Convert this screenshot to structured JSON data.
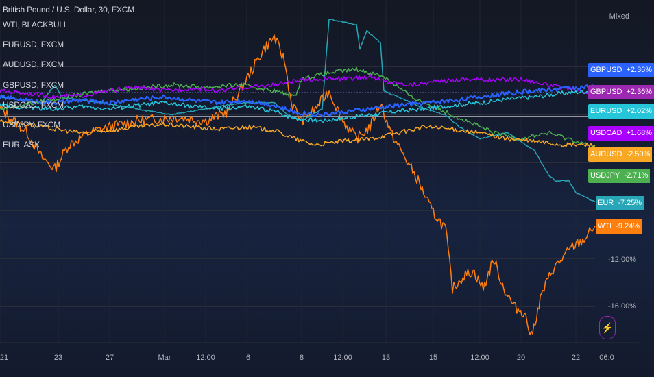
{
  "header": {
    "title": "British Pound / U.S. Dollar, 30, FXCM",
    "scale_mode": "Mixed"
  },
  "legend": [
    "WTI, BLACKBULL",
    "EURUSD, FXCM",
    "AUDUSD, FXCM",
    "GBPUSD, FXCM",
    "USDCAD, FXCM",
    "USDJPY, FXCM",
    "EUR, ASX"
  ],
  "price_labels": [
    {
      "symbol": "GBPUSD",
      "change": "+2.36%",
      "color": "#2962ff"
    },
    {
      "symbol": "GBPUSD",
      "change": "+2.36%",
      "color": "#9c27b0"
    },
    {
      "symbol": "EURUSD",
      "change": "+2.02%",
      "color": "#26c6da"
    },
    {
      "symbol": "USDCAD",
      "change": "+1.68%",
      "color": "#aa00ff"
    },
    {
      "symbol": "AUDUSD",
      "change": "-2.50%",
      "color": "#f9a825"
    },
    {
      "symbol": "USDJPY",
      "change": "-2.71%",
      "color": "#4caf50"
    },
    {
      "symbol": "EUR",
      "change": "-7.25%",
      "color": "#26a6b6"
    },
    {
      "symbol": "WTI",
      "change": "-9.24%",
      "color": "#ff7f0e"
    }
  ],
  "chart_data": {
    "type": "line",
    "ylabel_ticks": [
      "-12.00%",
      "-16.00%"
    ],
    "x_ticks": [
      "21",
      "23",
      "27",
      "Mar",
      "12:00",
      "6",
      "8",
      "12:00",
      "13",
      "15",
      "12:00",
      "20",
      "22",
      "06:0"
    ],
    "series": [
      {
        "name": "WTI",
        "color": "#ff7f0e",
        "points": [
          [
            0,
            0.5
          ],
          [
            20,
            -0.5
          ],
          [
            40,
            -1.5
          ],
          [
            60,
            -3.5
          ],
          [
            80,
            -4.5
          ],
          [
            100,
            -2.5
          ],
          [
            130,
            -1.5
          ],
          [
            160,
            -1.0
          ],
          [
            200,
            -0.5
          ],
          [
            260,
            -0.2
          ],
          [
            300,
            -0.5
          ],
          [
            330,
            0.2
          ],
          [
            350,
            2.0
          ],
          [
            370,
            4.0
          ],
          [
            385,
            5.5
          ],
          [
            400,
            6.5
          ],
          [
            415,
            4.5
          ],
          [
            425,
            1.0
          ],
          [
            440,
            -0.5
          ],
          [
            460,
            0.5
          ],
          [
            480,
            2.0
          ],
          [
            500,
            -0.5
          ],
          [
            520,
            -2.0
          ],
          [
            540,
            -1.0
          ],
          [
            555,
            1.0
          ],
          [
            570,
            -1.5
          ],
          [
            590,
            -3.5
          ],
          [
            610,
            -5.5
          ],
          [
            630,
            -8.0
          ],
          [
            650,
            -9.5
          ],
          [
            660,
            -14.5
          ],
          [
            675,
            -13.5
          ],
          [
            690,
            -13.0
          ],
          [
            705,
            -14.5
          ],
          [
            720,
            -12.0
          ],
          [
            735,
            -14.5
          ],
          [
            750,
            -16.0
          ],
          [
            765,
            -16.5
          ],
          [
            775,
            -18.5
          ],
          [
            790,
            -15.0
          ],
          [
            805,
            -13.0
          ],
          [
            820,
            -12.0
          ],
          [
            835,
            -11.0
          ],
          [
            850,
            -10.5
          ],
          [
            868,
            -9.24
          ]
        ]
      },
      {
        "name": "EUR",
        "color": "#26a6b6",
        "points": [
          [
            0,
            1.5
          ],
          [
            60,
            1.0
          ],
          [
            80,
            2.5
          ],
          [
            90,
            1.5
          ],
          [
            150,
            1.0
          ],
          [
            200,
            0.5
          ],
          [
            250,
            0.0
          ],
          [
            300,
            0.5
          ],
          [
            350,
            1.0
          ],
          [
            400,
            1.0
          ],
          [
            420,
            0.0
          ],
          [
            440,
            -0.5
          ],
          [
            470,
            0.5
          ],
          [
            480,
            8.0
          ],
          [
            520,
            7.5
          ],
          [
            525,
            5.5
          ],
          [
            535,
            7.0
          ],
          [
            555,
            6.0
          ],
          [
            560,
            2.0
          ],
          [
            600,
            1.0
          ],
          [
            620,
            0.5
          ],
          [
            650,
            0.0
          ],
          [
            670,
            -1.0
          ],
          [
            700,
            -2.0
          ],
          [
            740,
            -1.5
          ],
          [
            780,
            -3.0
          ],
          [
            800,
            -5.0
          ],
          [
            810,
            -5.5
          ],
          [
            830,
            -5.5
          ],
          [
            840,
            -6.5
          ],
          [
            868,
            -7.25
          ]
        ]
      },
      {
        "name": "USDJPY",
        "color": "#4caf50",
        "points": [
          [
            0,
            0.5
          ],
          [
            50,
            1.0
          ],
          [
            100,
            1.5
          ],
          [
            150,
            2.0
          ],
          [
            200,
            2.2
          ],
          [
            250,
            2.5
          ],
          [
            300,
            2.3
          ],
          [
            350,
            2.5
          ],
          [
            400,
            2.0
          ],
          [
            430,
            1.5
          ],
          [
            440,
            3.0
          ],
          [
            480,
            3.5
          ],
          [
            520,
            3.8
          ],
          [
            560,
            3.2
          ],
          [
            600,
            1.5
          ],
          [
            640,
            0.5
          ],
          [
            680,
            -0.5
          ],
          [
            720,
            -1.5
          ],
          [
            760,
            -2.0
          ],
          [
            800,
            -1.5
          ],
          [
            830,
            -2.0
          ],
          [
            868,
            -2.71
          ]
        ]
      },
      {
        "name": "AUDUSD",
        "color": "#f9a825",
        "points": [
          [
            0,
            -0.5
          ],
          [
            40,
            -0.8
          ],
          [
            80,
            -1.2
          ],
          [
            120,
            -1.5
          ],
          [
            160,
            -1.3
          ],
          [
            200,
            -1.0
          ],
          [
            240,
            -0.8
          ],
          [
            280,
            -1.0
          ],
          [
            320,
            -1.2
          ],
          [
            360,
            -1.0
          ],
          [
            400,
            -1.3
          ],
          [
            430,
            -2.0
          ],
          [
            460,
            -2.5
          ],
          [
            500,
            -2.2
          ],
          [
            540,
            -2.0
          ],
          [
            580,
            -1.5
          ],
          [
            620,
            -1.0
          ],
          [
            660,
            -1.2
          ],
          [
            700,
            -1.5
          ],
          [
            740,
            -2.0
          ],
          [
            780,
            -2.2
          ],
          [
            820,
            -2.5
          ],
          [
            868,
            -2.5
          ]
        ]
      },
      {
        "name": "USDCAD",
        "color": "#aa00ff",
        "points": [
          [
            0,
            2.0
          ],
          [
            40,
            1.8
          ],
          [
            80,
            1.5
          ],
          [
            120,
            1.6
          ],
          [
            160,
            2.0
          ],
          [
            200,
            2.3
          ],
          [
            240,
            2.0
          ],
          [
            280,
            2.2
          ],
          [
            320,
            2.0
          ],
          [
            360,
            2.3
          ],
          [
            400,
            2.5
          ],
          [
            430,
            2.8
          ],
          [
            470,
            3.0
          ],
          [
            510,
            3.0
          ],
          [
            540,
            3.2
          ],
          [
            560,
            2.8
          ],
          [
            600,
            2.5
          ],
          [
            640,
            2.8
          ],
          [
            680,
            3.0
          ],
          [
            720,
            2.9
          ],
          [
            760,
            3.0
          ],
          [
            800,
            2.5
          ],
          [
            840,
            2.0
          ],
          [
            868,
            1.68
          ]
        ]
      },
      {
        "name": "GBPUSD",
        "color": "#2962ff",
        "points": [
          [
            0,
            1.5
          ],
          [
            40,
            1.2
          ],
          [
            80,
            1.0
          ],
          [
            120,
            1.2
          ],
          [
            160,
            1.0
          ],
          [
            200,
            1.3
          ],
          [
            240,
            1.5
          ],
          [
            280,
            1.2
          ],
          [
            320,
            1.0
          ],
          [
            360,
            1.2
          ],
          [
            400,
            0.8
          ],
          [
            430,
            0.2
          ],
          [
            470,
            0.0
          ],
          [
            510,
            0.3
          ],
          [
            540,
            0.5
          ],
          [
            580,
            0.8
          ],
          [
            620,
            1.0
          ],
          [
            660,
            1.2
          ],
          [
            700,
            1.5
          ],
          [
            740,
            1.8
          ],
          [
            780,
            2.0
          ],
          [
            820,
            2.2
          ],
          [
            868,
            2.36
          ]
        ]
      },
      {
        "name": "EURUSD",
        "color": "#26c6da",
        "points": [
          [
            0,
            0.8
          ],
          [
            40,
            0.6
          ],
          [
            80,
            0.5
          ],
          [
            120,
            0.7
          ],
          [
            160,
            0.5
          ],
          [
            200,
            0.8
          ],
          [
            240,
            1.0
          ],
          [
            280,
            0.7
          ],
          [
            320,
            0.5
          ],
          [
            360,
            0.7
          ],
          [
            400,
            0.3
          ],
          [
            430,
            -0.3
          ],
          [
            470,
            -0.5
          ],
          [
            510,
            -0.2
          ],
          [
            540,
            0.0
          ],
          [
            580,
            0.3
          ],
          [
            620,
            0.5
          ],
          [
            660,
            0.8
          ],
          [
            700,
            1.0
          ],
          [
            740,
            1.3
          ],
          [
            780,
            1.5
          ],
          [
            820,
            1.8
          ],
          [
            868,
            2.02
          ]
        ]
      }
    ]
  }
}
